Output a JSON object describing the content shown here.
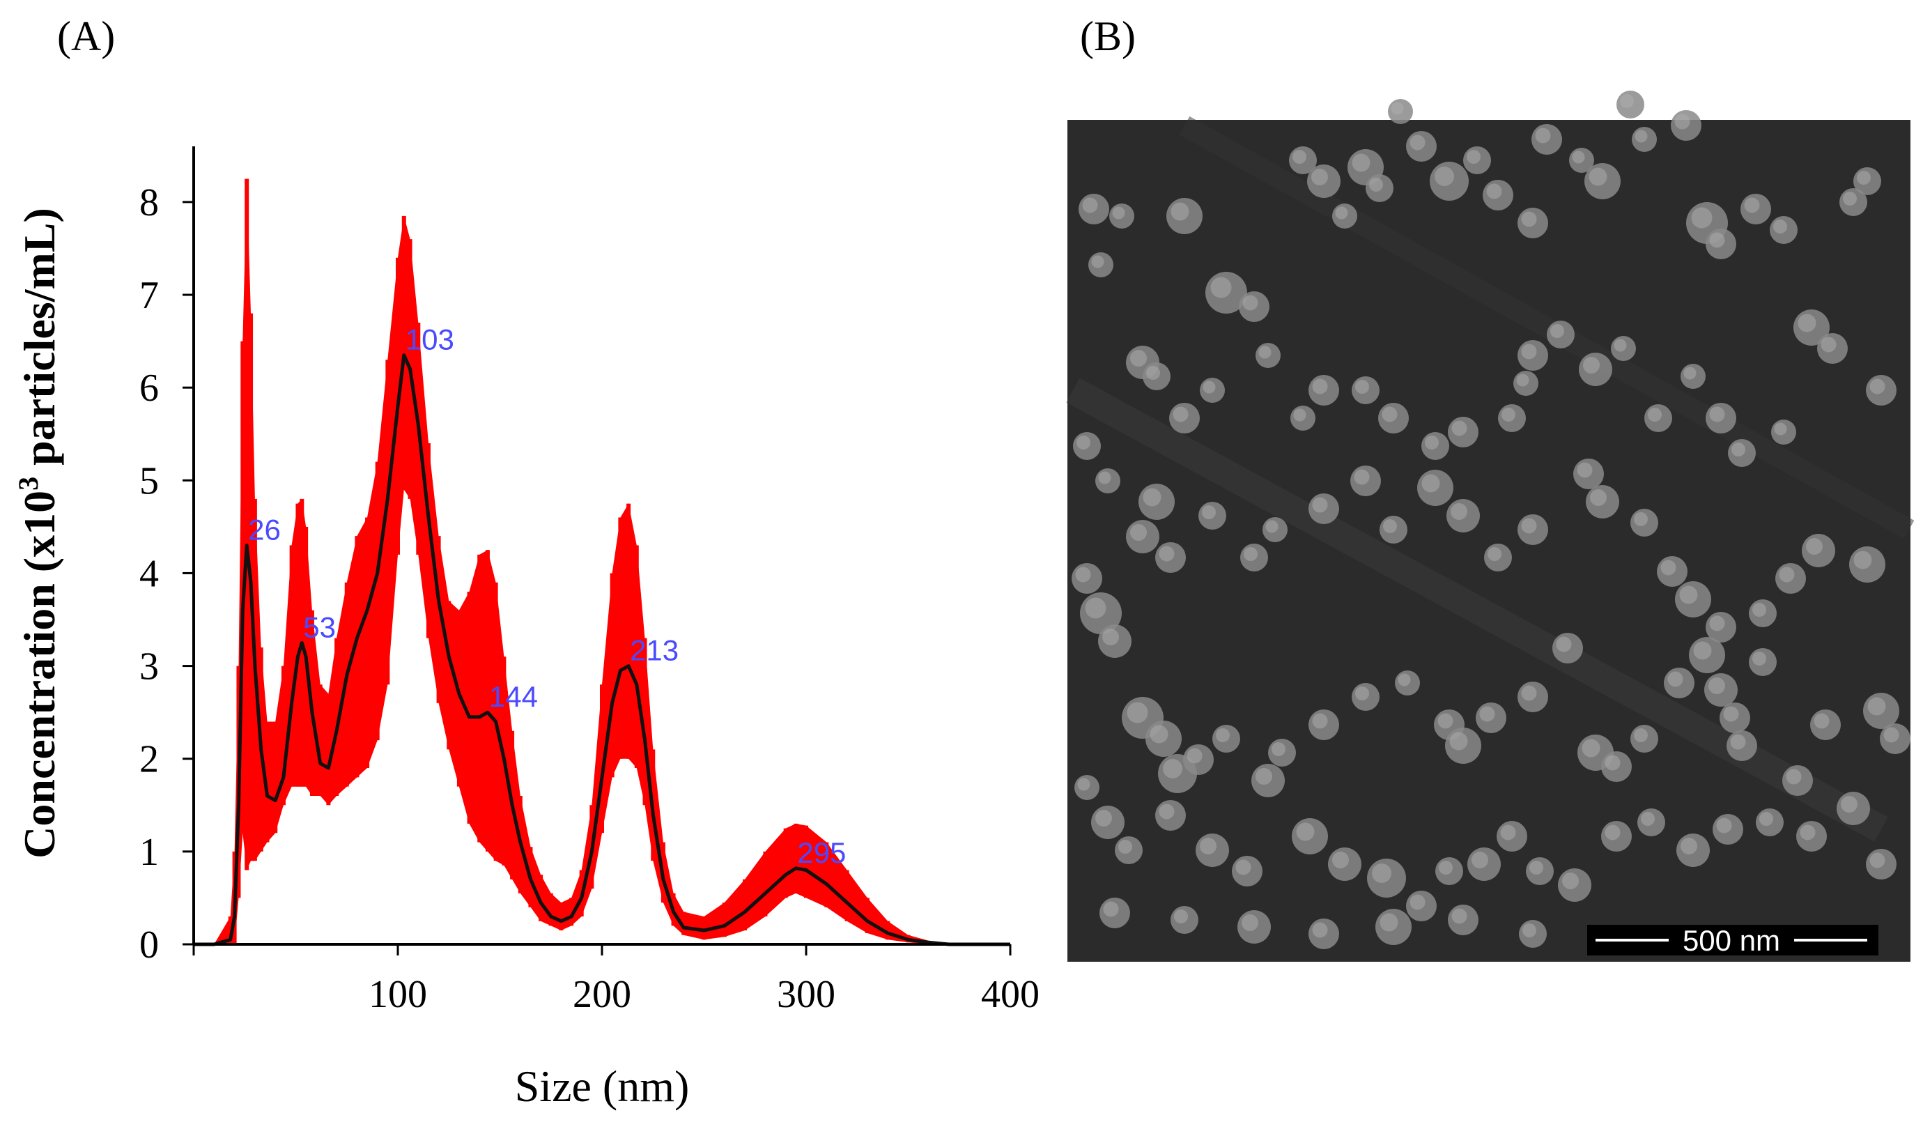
{
  "panels": {
    "a_label": "(A)",
    "b_label": "(B)"
  },
  "chart_data": {
    "type": "line",
    "title": "",
    "xlabel": "Size (nm)",
    "ylabel_main": "Concentration (x10",
    "ylabel_sup": "3",
    "ylabel_tail": " particles/mL)",
    "xlim": [
      0,
      400
    ],
    "ylim": [
      0,
      8.6
    ],
    "xticks": [
      100,
      200,
      300,
      400
    ],
    "xtick_labels": [
      "100",
      "200",
      "300",
      "400"
    ],
    "yticks": [
      0,
      1,
      2,
      3,
      4,
      5,
      6,
      7,
      8
    ],
    "ytick_labels": [
      "0",
      "1",
      "2",
      "3",
      "4",
      "5",
      "6",
      "7",
      "8"
    ],
    "grid": false,
    "colors": {
      "mean_line": "#111111",
      "error_band": "#ff0000",
      "peak_labels": "#4a4aff"
    },
    "series": [
      {
        "x": [
          0,
          10,
          18,
          20,
          22,
          24,
          26,
          28,
          30,
          33,
          36,
          40,
          44,
          48,
          51,
          53,
          55,
          58,
          62,
          66,
          70,
          75,
          80,
          85,
          90,
          95,
          100,
          103,
          106,
          110,
          115,
          120,
          125,
          130,
          135,
          140,
          144,
          148,
          152,
          156,
          160,
          165,
          170,
          175,
          180,
          185,
          190,
          195,
          200,
          205,
          209,
          213,
          217,
          221,
          225,
          230,
          235,
          240,
          250,
          260,
          270,
          280,
          290,
          295,
          300,
          310,
          320,
          330,
          340,
          350,
          360,
          370,
          380,
          400
        ],
        "y": [
          0,
          0,
          0.05,
          0.3,
          1.5,
          3.6,
          4.3,
          3.9,
          3.0,
          2.1,
          1.6,
          1.55,
          1.8,
          2.6,
          3.1,
          3.25,
          3.1,
          2.5,
          1.95,
          1.9,
          2.3,
          2.9,
          3.3,
          3.6,
          4.0,
          4.8,
          5.8,
          6.35,
          6.2,
          5.6,
          4.6,
          3.7,
          3.1,
          2.7,
          2.45,
          2.45,
          2.5,
          2.4,
          2.0,
          1.5,
          1.1,
          0.7,
          0.45,
          0.3,
          0.25,
          0.3,
          0.5,
          1.0,
          1.8,
          2.6,
          2.95,
          3.0,
          2.8,
          2.2,
          1.4,
          0.7,
          0.35,
          0.18,
          0.15,
          0.2,
          0.35,
          0.55,
          0.75,
          0.82,
          0.8,
          0.65,
          0.45,
          0.25,
          0.12,
          0.05,
          0.02,
          0,
          0,
          0
        ]
      },
      {
        "x": [
          0,
          10,
          18,
          20,
          22,
          24,
          26,
          28,
          30,
          33,
          36,
          40,
          44,
          48,
          51,
          53,
          55,
          58,
          62,
          66,
          70,
          75,
          80,
          85,
          90,
          95,
          100,
          103,
          106,
          110,
          115,
          120,
          125,
          130,
          135,
          140,
          144,
          148,
          152,
          156,
          160,
          165,
          170,
          175,
          180,
          185,
          190,
          195,
          200,
          205,
          209,
          213,
          217,
          221,
          225,
          230,
          235,
          240,
          250,
          260,
          270,
          280,
          290,
          295,
          300,
          310,
          320,
          330,
          340,
          350,
          360,
          370,
          380,
          400
        ],
        "upper": [
          0,
          0,
          0.3,
          1.0,
          3.0,
          6.5,
          8.25,
          6.8,
          4.8,
          3.2,
          2.4,
          2.4,
          3.0,
          4.3,
          4.75,
          4.8,
          4.5,
          3.6,
          2.8,
          2.7,
          3.3,
          3.9,
          4.4,
          4.6,
          5.2,
          6.3,
          7.4,
          7.85,
          7.6,
          6.7,
          5.4,
          4.4,
          3.7,
          3.6,
          3.8,
          4.2,
          4.25,
          3.9,
          3.1,
          2.3,
          1.6,
          1.05,
          0.75,
          0.55,
          0.45,
          0.5,
          0.8,
          1.5,
          2.8,
          4.0,
          4.6,
          4.75,
          4.3,
          3.3,
          2.1,
          1.1,
          0.55,
          0.35,
          0.3,
          0.45,
          0.7,
          1.0,
          1.25,
          1.3,
          1.28,
          1.1,
          0.8,
          0.5,
          0.25,
          0.1,
          0.04,
          0,
          0,
          0
        ],
        "lower": [
          0,
          0,
          0,
          0,
          0.5,
          1.2,
          0.8,
          0.9,
          0.9,
          1.0,
          1.1,
          1.2,
          1.5,
          1.7,
          1.7,
          1.7,
          1.7,
          1.6,
          1.6,
          1.5,
          1.6,
          1.7,
          1.8,
          1.9,
          2.2,
          2.8,
          4.2,
          4.9,
          4.8,
          4.2,
          3.3,
          2.6,
          2.1,
          1.7,
          1.3,
          1.1,
          1.0,
          0.9,
          0.85,
          0.7,
          0.55,
          0.4,
          0.25,
          0.2,
          0.15,
          0.2,
          0.3,
          0.6,
          1.2,
          1.8,
          2.0,
          2.0,
          1.9,
          1.5,
          0.9,
          0.45,
          0.2,
          0.1,
          0.05,
          0.08,
          0.15,
          0.3,
          0.5,
          0.55,
          0.5,
          0.4,
          0.25,
          0.12,
          0.05,
          0.02,
          0,
          0,
          0,
          0
        ]
      }
    ],
    "peaks": [
      {
        "x": 26,
        "y": 4.3,
        "label": "26"
      },
      {
        "x": 53,
        "y": 3.25,
        "label": "53"
      },
      {
        "x": 103,
        "y": 6.35,
        "label": "103"
      },
      {
        "x": 144,
        "y": 2.5,
        "label": "144"
      },
      {
        "x": 213,
        "y": 3.0,
        "label": "213"
      },
      {
        "x": 295,
        "y": 0.82,
        "label": "295"
      }
    ]
  },
  "micrograph": {
    "scale_bar_label": "500 nm",
    "background": "#2b2b2b",
    "particle_color": "#8a8a8a"
  }
}
